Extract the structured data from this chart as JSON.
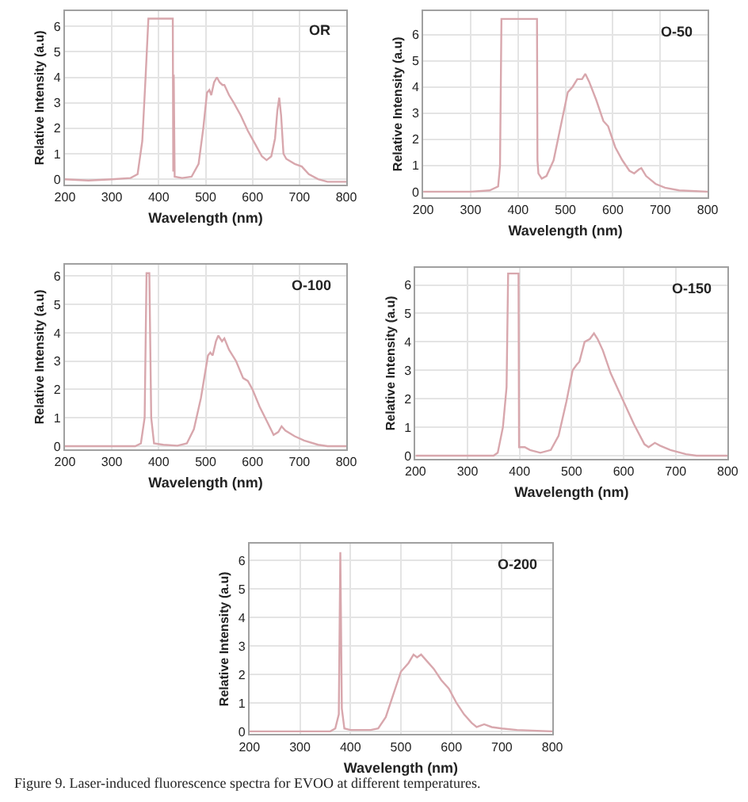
{
  "chart_data": [
    {
      "type": "line",
      "xlabel": "Wavelength (nm)",
      "ylabel": "Relative Intensity (a.u)",
      "annotations": [
        "OR"
      ],
      "xlim": [
        200,
        800
      ],
      "ylim": [
        -0.2,
        6.6
      ],
      "xticks": [
        200,
        300,
        400,
        500,
        600,
        700,
        800
      ],
      "yticks": [
        0,
        1,
        2,
        3,
        4,
        5,
        6
      ],
      "grid": true,
      "x": [
        200,
        250,
        300,
        340,
        355,
        365,
        372,
        378,
        430,
        431,
        432,
        434,
        450,
        470,
        485,
        495,
        503,
        508,
        512,
        518,
        524,
        530,
        536,
        540,
        550,
        560,
        575,
        590,
        605,
        620,
        630,
        640,
        648,
        653,
        657,
        661,
        666,
        672,
        690,
        705,
        720,
        740,
        760,
        800
      ],
      "series": [
        {
          "color": "#d8a7ad",
          "values": [
            0,
            -0.05,
            0,
            0.05,
            0.2,
            1.5,
            4,
            6.3,
            6.3,
            0.3,
            4.1,
            0.1,
            0.05,
            0.1,
            0.6,
            2,
            3.4,
            3.5,
            3.3,
            3.8,
            4.0,
            3.8,
            3.7,
            3.7,
            3.3,
            3.0,
            2.5,
            1.9,
            1.4,
            0.9,
            0.75,
            0.9,
            1.6,
            2.7,
            3.2,
            2.5,
            1.0,
            0.8,
            0.6,
            0.5,
            0.2,
            0,
            -0.1,
            -0.1
          ]
        }
      ]
    },
    {
      "type": "line",
      "xlabel": "Wavelength (nm)",
      "ylabel": "Relative Intensity (a.u)",
      "annotations": [
        "O-50"
      ],
      "xlim": [
        200,
        800
      ],
      "ylim": [
        -0.2,
        6.9
      ],
      "xticks": [
        200,
        300,
        400,
        500,
        600,
        700,
        800
      ],
      "yticks": [
        0,
        1,
        2,
        3,
        4,
        5,
        6
      ],
      "grid": true,
      "x": [
        200,
        300,
        340,
        358,
        362,
        365,
        440,
        441,
        443,
        450,
        460,
        475,
        490,
        505,
        515,
        525,
        535,
        542,
        550,
        565,
        580,
        590,
        605,
        620,
        635,
        645,
        655,
        660,
        670,
        690,
        710,
        740,
        800
      ],
      "series": [
        {
          "color": "#d8a7ad",
          "values": [
            0,
            0,
            0.05,
            0.2,
            1,
            6.6,
            6.6,
            1.2,
            0.7,
            0.5,
            0.6,
            1.2,
            2.5,
            3.8,
            4.0,
            4.3,
            4.3,
            4.5,
            4.2,
            3.5,
            2.7,
            2.5,
            1.7,
            1.2,
            0.8,
            0.7,
            0.85,
            0.9,
            0.6,
            0.3,
            0.15,
            0.05,
            0
          ]
        }
      ]
    },
    {
      "type": "line",
      "xlabel": "Wavelength (nm)",
      "ylabel": "Relative Intensity (a.u)",
      "annotations": [
        "O-100"
      ],
      "xlim": [
        200,
        800
      ],
      "ylim": [
        -0.1,
        6.4
      ],
      "xticks": [
        200,
        300,
        400,
        500,
        600,
        700,
        800
      ],
      "yticks": [
        0,
        1,
        2,
        3,
        4,
        5,
        6
      ],
      "grid": true,
      "x": [
        200,
        350,
        362,
        370,
        374,
        380,
        384,
        390,
        410,
        440,
        460,
        475,
        490,
        505,
        510,
        515,
        522,
        527,
        535,
        540,
        550,
        565,
        580,
        590,
        600,
        615,
        630,
        645,
        655,
        662,
        670,
        690,
        710,
        740,
        760,
        800
      ],
      "series": [
        {
          "color": "#d8a7ad",
          "values": [
            0,
            0,
            0.1,
            1,
            6.1,
            6.1,
            1,
            0.1,
            0.05,
            0.02,
            0.1,
            0.6,
            1.7,
            3.2,
            3.3,
            3.2,
            3.7,
            3.9,
            3.7,
            3.8,
            3.4,
            3.0,
            2.4,
            2.3,
            2.0,
            1.4,
            0.9,
            0.4,
            0.5,
            0.7,
            0.55,
            0.35,
            0.2,
            0.05,
            0,
            0
          ]
        }
      ]
    },
    {
      "type": "line",
      "xlabel": "Wavelength (nm)",
      "ylabel": "Relative Intensity (a.u)",
      "annotations": [
        "O-150"
      ],
      "xlim": [
        200,
        800
      ],
      "ylim": [
        -0.1,
        6.6
      ],
      "xticks": [
        200,
        300,
        400,
        500,
        600,
        700,
        800
      ],
      "yticks": [
        0,
        1,
        2,
        3,
        4,
        5,
        6
      ],
      "grid": true,
      "x": [
        200,
        350,
        358,
        368,
        375,
        378,
        398,
        399,
        410,
        420,
        440,
        460,
        475,
        490,
        502,
        510,
        515,
        525,
        535,
        543,
        550,
        560,
        575,
        590,
        605,
        620,
        640,
        648,
        660,
        670,
        690,
        720,
        740,
        800
      ],
      "series": [
        {
          "color": "#d8a7ad",
          "values": [
            0,
            0,
            0.1,
            1,
            2.4,
            6.4,
            6.4,
            0.3,
            0.3,
            0.2,
            0.1,
            0.2,
            0.7,
            1.9,
            3.0,
            3.2,
            3.3,
            4.0,
            4.1,
            4.3,
            4.1,
            3.7,
            2.9,
            2.3,
            1.7,
            1.1,
            0.4,
            0.3,
            0.45,
            0.35,
            0.2,
            0.05,
            0,
            0
          ]
        }
      ]
    },
    {
      "type": "line",
      "xlabel": "Wavelength (nm)",
      "ylabel": "Relative Intensity (a.u)",
      "annotations": [
        "O-200",
        "Figure 9. Laser-induced fluorescence spectra for EVOO at different temperatures."
      ],
      "xlim": [
        200,
        800
      ],
      "ylim": [
        -0.1,
        6.6
      ],
      "xticks": [
        200,
        300,
        400,
        500,
        600,
        700,
        800
      ],
      "yticks": [
        0,
        1,
        2,
        3,
        4,
        5,
        6
      ],
      "grid": true,
      "x": [
        200,
        360,
        370,
        377,
        380,
        383,
        388,
        400,
        440,
        455,
        470,
        485,
        500,
        515,
        525,
        532,
        540,
        550,
        565,
        580,
        595,
        610,
        625,
        640,
        650,
        665,
        680,
        700,
        730,
        800
      ],
      "series": [
        {
          "color": "#d8a7ad",
          "values": [
            0,
            0,
            0.1,
            0.6,
            6.3,
            0.8,
            0.1,
            0.05,
            0.05,
            0.1,
            0.5,
            1.3,
            2.1,
            2.4,
            2.7,
            2.6,
            2.7,
            2.5,
            2.2,
            1.8,
            1.5,
            1.0,
            0.6,
            0.3,
            0.15,
            0.25,
            0.15,
            0.1,
            0.05,
            0
          ]
        }
      ]
    }
  ]
}
